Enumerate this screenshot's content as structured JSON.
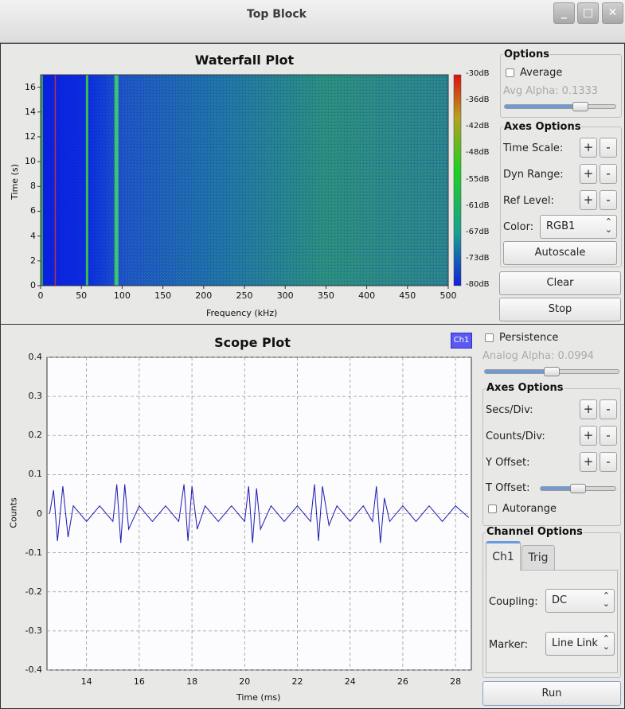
{
  "window": {
    "title": "Top Block",
    "minimize": "_",
    "maximize": "□",
    "close": "✕"
  },
  "waterfall": {
    "title": "Waterfall Plot",
    "xlabel": "Frequency (kHz)",
    "ylabel": "Time (s)",
    "x_ticks": [
      "0",
      "50",
      "100",
      "150",
      "200",
      "250",
      "300",
      "350",
      "400",
      "450",
      "500"
    ],
    "y_ticks": [
      "0",
      "2",
      "4",
      "6",
      "8",
      "10",
      "12",
      "14",
      "16"
    ],
    "colorbar_ticks": [
      "-30dB",
      "-36dB",
      "-42dB",
      "-48dB",
      "-55dB",
      "-61dB",
      "-67dB",
      "-73dB",
      "-80dB"
    ]
  },
  "waterfall_controls": {
    "options_title": "Options",
    "average_label": "Average",
    "average_checked": false,
    "avg_alpha_label": "Avg Alpha: 0.1333",
    "avg_alpha_value": 0.1333,
    "axes_title": "Axes Options",
    "time_scale_label": "Time Scale:",
    "dyn_range_label": "Dyn Range:",
    "ref_level_label": "Ref Level:",
    "color_label": "Color:",
    "color_value": "RGB1",
    "plus": "+",
    "minus": "-",
    "autoscale_label": "Autoscale",
    "clear_label": "Clear",
    "stop_label": "Stop"
  },
  "scope": {
    "title": "Scope Plot",
    "legend": "Ch1",
    "xlabel": "Time (ms)",
    "ylabel": "Counts",
    "x_ticks": [
      "14",
      "16",
      "18",
      "20",
      "22",
      "24",
      "26",
      "28"
    ],
    "y_ticks": [
      "0.4",
      "0.3",
      "0.2",
      "0.1",
      "0",
      "-0.1",
      "-0.2",
      "-0.3",
      "-0.4"
    ]
  },
  "scope_controls": {
    "persistence_label": "Persistence",
    "persistence_checked": false,
    "analog_alpha_label": "Analog Alpha: 0.0994",
    "analog_alpha_value": 0.0994,
    "axes_title": "Axes Options",
    "secs_div_label": "Secs/Div:",
    "counts_div_label": "Counts/Div:",
    "y_offset_label": "Y Offset:",
    "t_offset_label": "T Offset:",
    "autorange_label": "Autorange",
    "autorange_checked": false,
    "channel_title": "Channel Options",
    "tab_ch1": "Ch1",
    "tab_trig": "Trig",
    "coupling_label": "Coupling:",
    "coupling_value": "DC",
    "marker_label": "Marker:",
    "marker_value": "Line Link",
    "run_label": "Run",
    "plus": "+",
    "minus": "-"
  },
  "chart_data": [
    {
      "type": "heatmap",
      "title": "Waterfall Plot",
      "xlabel": "Frequency (kHz)",
      "ylabel": "Time (s)",
      "xlim": [
        0,
        500
      ],
      "ylim": [
        0,
        17
      ],
      "colorbar_range_db": [
        -80,
        -30
      ],
      "strong_lines_khz": [
        18,
        57,
        93
      ]
    },
    {
      "type": "line",
      "title": "Scope Plot",
      "xlabel": "Time (ms)",
      "ylabel": "Counts",
      "xlim": [
        12.5,
        28.6
      ],
      "ylim": [
        -0.4,
        0.4
      ],
      "grid": true,
      "series": [
        {
          "name": "Ch1",
          "color": "#1a1ab0",
          "x": [
            12.6,
            12.75,
            12.9,
            13.1,
            13.3,
            13.5,
            14.0,
            14.5,
            15.0,
            15.15,
            15.3,
            15.45,
            15.6,
            16.0,
            16.5,
            17.0,
            17.5,
            17.7,
            17.85,
            18.0,
            18.2,
            18.5,
            19.0,
            19.5,
            20.0,
            20.15,
            20.3,
            20.45,
            20.6,
            21.0,
            21.5,
            22.0,
            22.5,
            22.65,
            22.8,
            22.95,
            23.2,
            23.5,
            24.0,
            24.5,
            24.85,
            25.0,
            25.15,
            25.3,
            25.5,
            26.0,
            26.5,
            27.0,
            27.5,
            28.0,
            28.5
          ],
          "y": [
            0.0,
            0.06,
            -0.07,
            0.07,
            -0.06,
            0.02,
            -0.02,
            0.02,
            -0.02,
            0.075,
            -0.075,
            0.075,
            -0.04,
            0.02,
            -0.02,
            0.02,
            -0.02,
            0.075,
            -0.07,
            0.07,
            -0.04,
            0.02,
            -0.02,
            0.02,
            -0.02,
            0.07,
            -0.075,
            0.065,
            -0.04,
            0.02,
            -0.02,
            0.02,
            -0.02,
            0.075,
            -0.07,
            0.07,
            -0.03,
            0.02,
            -0.02,
            0.02,
            -0.02,
            0.07,
            -0.075,
            0.04,
            -0.02,
            0.02,
            -0.02,
            0.02,
            -0.02,
            0.02,
            -0.01
          ]
        }
      ]
    }
  ]
}
